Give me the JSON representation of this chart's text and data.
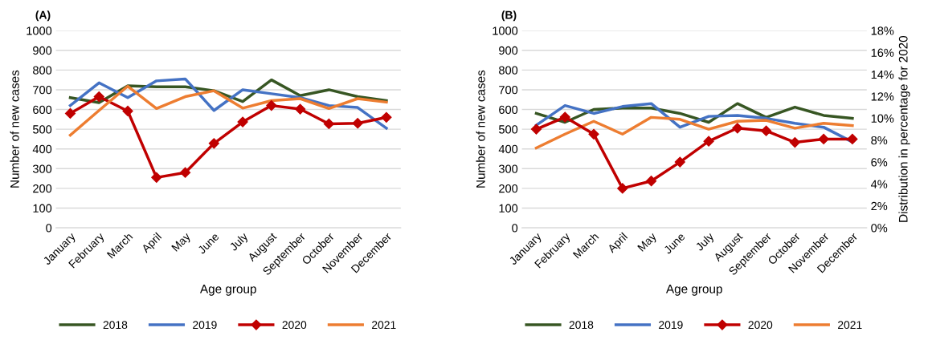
{
  "chart_data": [
    {
      "type": "line",
      "title": "(A)",
      "xlabel": "Age group",
      "ylabel": "Number of new cases",
      "categories": [
        "January",
        "February",
        "March",
        "April",
        "May",
        "June",
        "July",
        "August",
        "September",
        "October",
        "November",
        "December"
      ],
      "series": [
        {
          "name": "2018",
          "color": "#375623",
          "values": [
            660,
            635,
            720,
            715,
            715,
            695,
            640,
            750,
            670,
            700,
            665,
            645
          ]
        },
        {
          "name": "2019",
          "color": "#4472c4",
          "values": [
            620,
            735,
            660,
            745,
            755,
            595,
            700,
            680,
            660,
            620,
            610,
            505
          ]
        },
        {
          "name": "2020",
          "color": "#c00000",
          "marker": "diamond",
          "values": [
            580,
            665,
            592,
            255,
            280,
            428,
            537,
            620,
            602,
            527,
            530,
            560
          ]
        },
        {
          "name": "2021",
          "color": "#ed7d31",
          "values": [
            470,
            595,
            718,
            605,
            665,
            695,
            607,
            645,
            655,
            605,
            655,
            637
          ]
        }
      ],
      "ylim": [
        0,
        1000
      ],
      "yticks": [
        0,
        100,
        200,
        300,
        400,
        500,
        600,
        700,
        800,
        900,
        1000
      ],
      "grid": "y",
      "legend": "bottom"
    },
    {
      "type": "line",
      "title": "(B)",
      "xlabel": "Age group",
      "ylabel": "Number of new cases",
      "y2label": "Distribution in percentage for 2020",
      "categories": [
        "January",
        "February",
        "March",
        "April",
        "May",
        "June",
        "July",
        "August",
        "September",
        "October",
        "November",
        "December"
      ],
      "series": [
        {
          "name": "2018",
          "color": "#375623",
          "values": [
            580,
            535,
            600,
            607,
            607,
            580,
            535,
            630,
            560,
            612,
            570,
            555
          ]
        },
        {
          "name": "2019",
          "color": "#4472c4",
          "values": [
            520,
            620,
            580,
            615,
            630,
            510,
            565,
            570,
            555,
            530,
            510,
            435
          ]
        },
        {
          "name": "2020",
          "color": "#c00000",
          "marker": "diamond",
          "axis": "y2",
          "values": [
            9.0,
            10.1,
            8.55,
            3.6,
            4.27,
            6.0,
            7.9,
            9.1,
            8.85,
            7.8,
            8.1,
            8.1
          ]
        },
        {
          "name": "2021",
          "color": "#ed7d31",
          "values": [
            405,
            475,
            540,
            475,
            560,
            550,
            500,
            540,
            545,
            505,
            530,
            518
          ]
        }
      ],
      "ylim": [
        0,
        1000
      ],
      "yticks": [
        0,
        100,
        200,
        300,
        400,
        500,
        600,
        700,
        800,
        900,
        1000
      ],
      "y2lim": [
        0,
        18
      ],
      "y2ticks": [
        {
          "value": 0,
          "label": "0%"
        },
        {
          "value": 2,
          "label": "2%"
        },
        {
          "value": 4,
          "label": "4%"
        },
        {
          "value": 6,
          "label": "6%"
        },
        {
          "value": 8,
          "label": "8%"
        },
        {
          "value": 10,
          "label": "10%"
        },
        {
          "value": 12,
          "label": "12%"
        },
        {
          "value": 14,
          "label": "14%"
        },
        {
          "value": 16,
          "label": "16%"
        },
        {
          "value": 18,
          "label": "18%"
        }
      ],
      "grid": "y",
      "legend": "bottom"
    }
  ]
}
